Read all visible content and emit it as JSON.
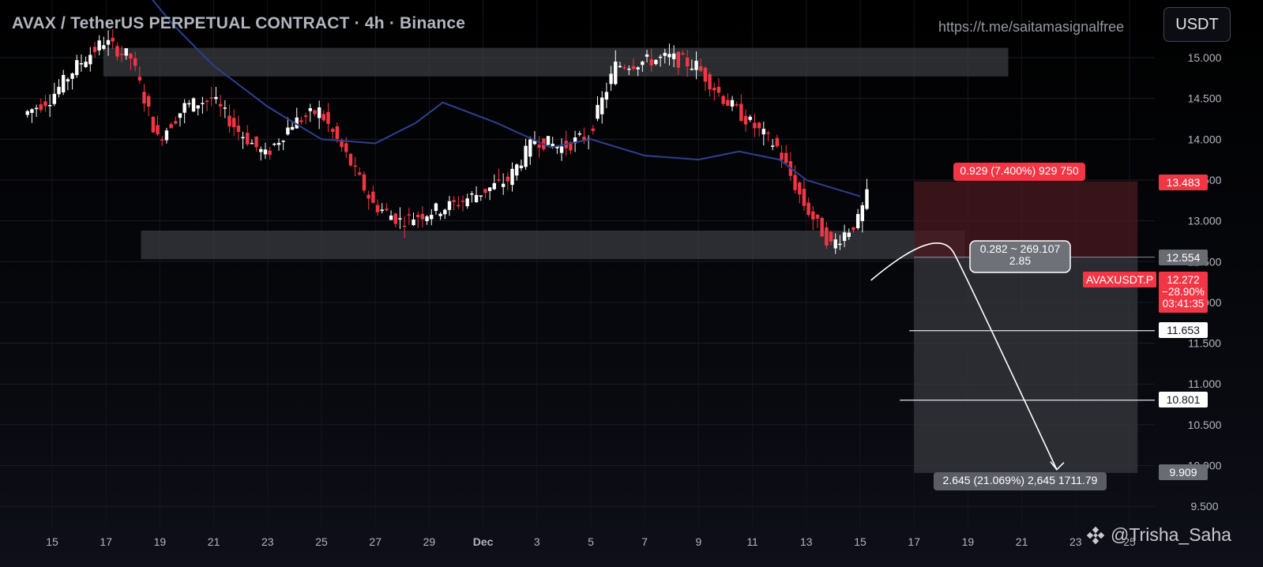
{
  "header": {
    "title": "AVAX / TetherUS PERPETUAL CONTRACT · 4h · Binance",
    "watermark_url": "https://t.me/saitamasignalfree",
    "currency_button": "USDT"
  },
  "credit": {
    "text": "@Trisha_Saha",
    "icon": "binance-diamond-icon"
  },
  "colors": {
    "up": "#ffffff",
    "down": "#f23645",
    "ma": "#2f3f8f",
    "zone": "#3a3b40",
    "stop_zone": "#4a1a20",
    "target_zone": "#3a3b42",
    "label_red": "#f23645",
    "label_gray": "#5b5d66"
  },
  "chart_data": {
    "type": "candlestick",
    "symbol": "AVAXUSDT.P",
    "interval": "4h",
    "y_axis": {
      "min": 9.3,
      "max": 15.3,
      "ticks": [
        "9.500",
        "10.000",
        "10.500",
        "11.000",
        "11.500",
        "12.000",
        "12.500",
        "13.000",
        "13.500",
        "14.000",
        "14.500",
        "15.000"
      ]
    },
    "x_axis": {
      "labels": [
        "15",
        "17",
        "19",
        "21",
        "23",
        "25",
        "27",
        "29",
        "Dec",
        "3",
        "5",
        "7",
        "9",
        "11",
        "13",
        "15",
        "17",
        "19",
        "21",
        "23",
        "25"
      ],
      "label_days": [
        15,
        17,
        19,
        21,
        23,
        25,
        27,
        29,
        31,
        33,
        35,
        37,
        39,
        41,
        43,
        45,
        47,
        49,
        51,
        53,
        55
      ]
    },
    "price_path_day": [
      14.3,
      14.5,
      14.9,
      15.2,
      15.0,
      14.0,
      14.4,
      14.5,
      14.1,
      13.8,
      14.2,
      14.35,
      13.8,
      13.2,
      13.0,
      13.1,
      13.2,
      13.35,
      13.5,
      14.0,
      13.9,
      14.05,
      14.9,
      14.95,
      15.0,
      14.9,
      14.5,
      14.2,
      13.9,
      13.2,
      12.7,
      13.0,
      13.9,
      14.7,
      14.8,
      14.4,
      13.6,
      13.15,
      13.25,
      13.8,
      13.6,
      13.9,
      14.65,
      14.6,
      13.5,
      13.4,
      13.7,
      13.25,
      13.35,
      13.0,
      12.5,
      12.25
    ],
    "price_path_start_day": 14,
    "moving_average": {
      "values": [
        15.8,
        15.4,
        14.9,
        14.4,
        14.0,
        13.95,
        14.2,
        14.45,
        14.2,
        14.05,
        13.9,
        14.0,
        13.8,
        13.75,
        13.85,
        13.75,
        13.5,
        13.4,
        13.3
      ],
      "days": [
        18.5,
        19.5,
        21,
        23,
        25,
        27,
        28.5,
        29.5,
        31.5,
        32.5,
        33.5,
        35,
        37,
        39,
        40.5,
        42,
        43,
        44,
        45
      ]
    },
    "resistance_zone": {
      "low": 14.77,
      "high": 15.12,
      "start_day": 16.9,
      "end_day": 50.5
    },
    "support_zone": {
      "low": 12.53,
      "high": 12.88,
      "start_day": 18.3,
      "end_day": 48.9
    },
    "position": {
      "entry": 12.554,
      "stop": 13.483,
      "target": 9.909,
      "tp1": 11.653,
      "tp2": 10.801,
      "start_day": 47,
      "end_day": 55.3
    },
    "labels": {
      "stop_info": "0.929 (7.400%) 929 750",
      "target_info": "2.645 (21.069%) 2,645 1711.79",
      "ratio_line1": "0.282 ~ 269.107",
      "ratio_line2": "2.85",
      "price_stop": "13.483",
      "price_entry": "12.554",
      "price_tp1": "11.653",
      "price_tp2": "10.801",
      "price_target": "9.909",
      "symbol_tag": "AVAXUSDT.P",
      "last_price": "12.272",
      "change": "−28.90%",
      "countdown": "03:41:35"
    },
    "projection": {
      "from_day": 45.4,
      "from_price": 12.27,
      "peak_day": 47.9,
      "peak_price": 12.6,
      "to_day": 52.3,
      "to_price": 9.95
    }
  }
}
